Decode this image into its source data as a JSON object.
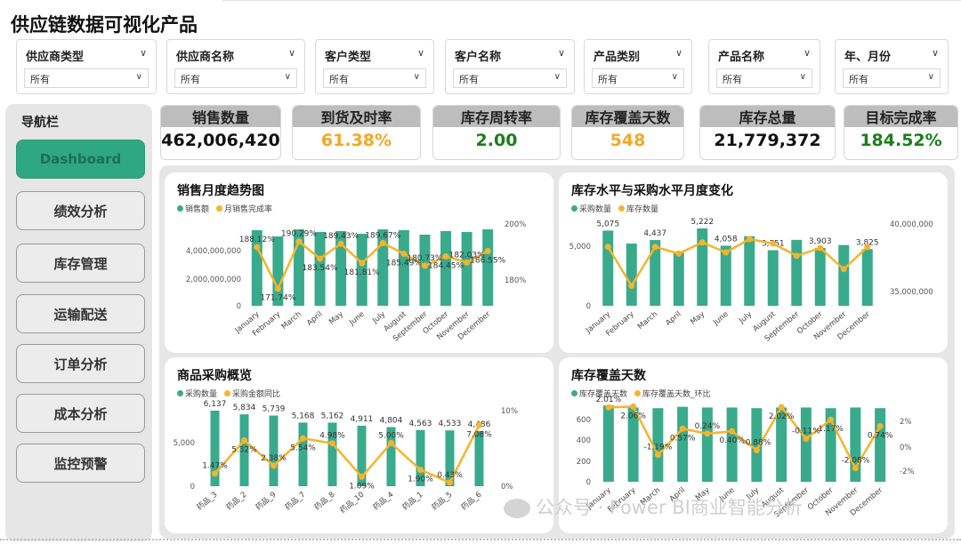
{
  "title": "供应链数据可视化产品",
  "filters": [
    {
      "label": "供应商类型",
      "value": "所有"
    },
    {
      "label": "供应商名称",
      "value": "所有"
    },
    {
      "label": "客户类型",
      "value": "所有"
    },
    {
      "label": "客户名称",
      "value": "所有"
    },
    {
      "label": "产品类别",
      "value": "所有"
    },
    {
      "label": "产品名称",
      "value": "所有"
    },
    {
      "label": "年、月份",
      "value": "所有"
    }
  ],
  "nav": {
    "title": "导航栏",
    "items": [
      "Dashboard",
      "绩效分析",
      "库存管理",
      "运输配送",
      "订单分析",
      "成本分析",
      "监控预警"
    ],
    "active": 0
  },
  "kpis": [
    {
      "label": "销售数量",
      "value": "462,006,420",
      "color": "#111111"
    },
    {
      "label": "到货及时率",
      "value": "61.38%",
      "color": "#f5a623"
    },
    {
      "label": "库存周转率",
      "value": "2.00",
      "color": "#1a7f1a"
    },
    {
      "label": "库存覆盖天数",
      "value": "548",
      "color": "#f5a623"
    },
    {
      "label": "库存总量",
      "value": "21,779,372",
      "color": "#111111"
    },
    {
      "label": "目标完成率",
      "value": "184.52%",
      "color": "#1a7f1a"
    }
  ],
  "colors": {
    "bar": "#3aaa8c",
    "line": "#f7b32b"
  },
  "chart_data": [
    {
      "type": "bar",
      "title": "销售月度趋势图",
      "legend": [
        "销售额",
        "月销售完成率"
      ],
      "categories": [
        "January",
        "February",
        "March",
        "April",
        "May",
        "June",
        "July",
        "August",
        "September",
        "October",
        "November",
        "December"
      ],
      "series": [
        {
          "name": "销售额",
          "type": "bar",
          "axis": "left",
          "values": [
            4250000000,
            3900000000,
            4300000000,
            4150000000,
            4200000000,
            4050000000,
            4300000000,
            4250000000,
            4000000000,
            4200000000,
            4150000000,
            4300000000
          ]
        },
        {
          "name": "月销售完成率",
          "type": "line",
          "axis": "right",
          "values": [
            188.12,
            171.74,
            190.29,
            183.54,
            189.43,
            181.81,
            189.67,
            185.49,
            180.73,
            184.45,
            182.03,
            186.55
          ],
          "labels": [
            "188.12%",
            "171.74%",
            "190.29%",
            "183.54%",
            "189.43%",
            "181.81%",
            "189.67%",
            "185.49%",
            "180.73%",
            "184.45%",
            "182.03%",
            "186.55%"
          ]
        }
      ],
      "yticks_left": [
        "0",
        "2,000,000,000",
        "4,000,000,000"
      ],
      "ylim_left": [
        0,
        5000000000
      ],
      "yticks_right": [
        "180%",
        "200%"
      ],
      "ylim_right": [
        165,
        200
      ]
    },
    {
      "type": "bar",
      "title": "库存水平与采购水平月度变化",
      "legend": [
        "采购数量",
        "库存数量"
      ],
      "categories": [
        "January",
        "February",
        "March",
        "April",
        "May",
        "June",
        "July",
        "August",
        "September",
        "October",
        "November",
        "December"
      ],
      "series": [
        {
          "name": "采购数量",
          "type": "bar",
          "axis": "left",
          "values": [
            5075,
            4200,
            4437,
            3600,
            5222,
            4058,
            4700,
            3751,
            4450,
            3903,
            4100,
            3825
          ],
          "labels": [
            "5,075",
            "",
            "4,437",
            "",
            "5,222",
            "4,058",
            "",
            "3,751",
            "",
            "3,903",
            "",
            "3,825"
          ]
        },
        {
          "name": "库存数量",
          "type": "line",
          "axis": "right",
          "values": [
            38300000,
            34800000,
            38300000,
            37700000,
            38700000,
            37800000,
            39000000,
            38600000,
            37500000,
            38200000,
            36300000,
            38300000
          ]
        }
      ],
      "yticks_left": [
        "0",
        "5,000"
      ],
      "ylim_left": [
        0,
        6000
      ],
      "yticks_right": [
        "35,000,000",
        "40,000,000"
      ],
      "ylim_right": [
        33000000,
        41000000
      ]
    },
    {
      "type": "bar",
      "title": "商品采购概览",
      "legend": [
        "采购数量",
        "采购金额同比"
      ],
      "categories": [
        "药品_3",
        "药品_2",
        "药品_9",
        "药品_7",
        "药品_8",
        "药品_10",
        "药品_4",
        "药品_1",
        "药品_5",
        "药品_6"
      ],
      "series": [
        {
          "name": "采购数量",
          "type": "bar",
          "axis": "left",
          "values": [
            6137,
            5834,
            5739,
            5168,
            5162,
            4911,
            4804,
            4563,
            4533,
            4486
          ],
          "labels": [
            "6,137",
            "5,834",
            "5,739",
            "5,168",
            "5,162",
            "4,911",
            "4,804",
            "4,563",
            "4,533",
            "4,486"
          ]
        },
        {
          "name": "采购金额同比",
          "type": "line",
          "axis": "right",
          "values": [
            1.47,
            5.32,
            2.38,
            5.54,
            4.98,
            1.09,
            5.0,
            1.9,
            0.43,
            7.08
          ],
          "labels": [
            "1.47%",
            "5.32%",
            "2.38%",
            "5.54%",
            "4.98%",
            "1.09%",
            "5.00%",
            "1.90%",
            "0.43%",
            "7.08%"
          ]
        }
      ],
      "yticks_left": [
        "0",
        "5,000"
      ],
      "ylim_left": [
        0,
        7000
      ],
      "yticks_right": [
        "0%",
        "10%"
      ],
      "ylim_right": [
        0,
        10
      ]
    },
    {
      "type": "bar",
      "title": "库存覆盖天数",
      "legend": [
        "库存覆盖天数",
        "库存覆盖天数_环比"
      ],
      "categories": [
        "January",
        "February",
        "March",
        "April",
        "May",
        "June",
        "July",
        "August",
        "September",
        "October",
        "November",
        "December"
      ],
      "series": [
        {
          "name": "库存覆盖天数",
          "type": "bar",
          "axis": "left",
          "values": [
            560,
            545,
            540,
            550,
            545,
            545,
            540,
            545,
            545,
            540,
            545,
            540
          ]
        },
        {
          "name": "库存覆盖天数_环比",
          "type": "line",
          "axis": "right",
          "values": [
            2.01,
            2.06,
            -1.19,
            0.57,
            0.24,
            0.4,
            -0.88,
            2.02,
            -0.11,
            1.17,
            -2.08,
            0.74
          ],
          "labels": [
            "2.01%",
            "2.06%",
            "-1.19%",
            "0.57%",
            "0.24%",
            "0.40%",
            "-0.88%",
            "2.02%",
            "-0.11%",
            "1.17%",
            "-2.08%",
            "0.74%"
          ]
        }
      ],
      "yticks_left": [
        "0",
        "200",
        "400",
        "600"
      ],
      "ylim_left": [
        0,
        600
      ],
      "yticks_right": [
        "-2%",
        "0%",
        "2%"
      ],
      "ylim_right": [
        -3,
        2.5
      ]
    }
  ],
  "watermark": "公众号 · Power BI商业智能分析"
}
